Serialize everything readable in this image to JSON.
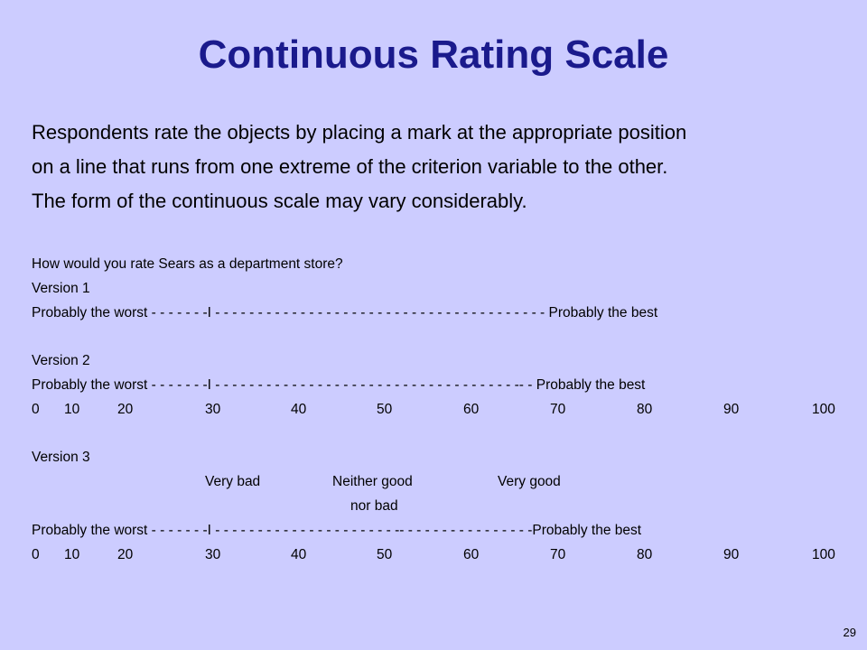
{
  "slide": {
    "title": "Continuous Rating Scale",
    "intro_lines": [
      "Respondents rate the objects by placing a mark at the appropriate position",
      "on a line that runs from one extreme of the criterion variable to the other.",
      "The form of the continuous scale may vary considerably."
    ],
    "question": "How would you rate Sears as a department store?",
    "version1": {
      "label": "Version 1",
      "scale_line": "Probably the worst - - - - - - -I - - - - - - - - - - - - - - - - - - - - - - - - - - - - - - - - - - - - - - - Probably the best"
    },
    "version2": {
      "label": "Version 2",
      "scale_line": "Probably the worst - - - - - - -I - - - - - - - - - - - - - - - - - - - - - - - - - -  - - - - - - - - - -- - Probably the best",
      "numbers": [
        "0",
        "10",
        "20",
        "30",
        "40",
        "50",
        "60",
        "70",
        "80",
        "90",
        "100"
      ]
    },
    "version3": {
      "label": "Version 3",
      "anchor_very_bad": "Very bad",
      "anchor_neither_line1": "Neither good",
      "anchor_neither_line2": "nor bad",
      "anchor_very_good": "Very good",
      "scale_line": "Probably the worst - - - - - - -I - - - - - - - - - - - - -  - - - - - - - - -- - - - - - - - - - - - - - - -Probably the best",
      "numbers": [
        "0",
        "10",
        "20",
        "30",
        "40",
        "50",
        "60",
        "70",
        "80",
        "90",
        "100"
      ]
    },
    "page_number": "29"
  }
}
